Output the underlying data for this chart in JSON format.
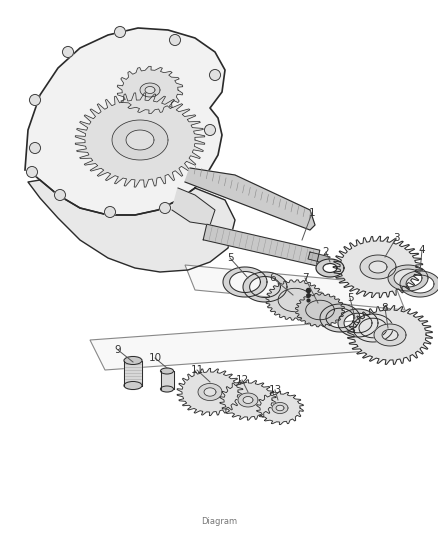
{
  "title": "Diagram",
  "background_color": "#ffffff",
  "line_color": "#2a2a2a",
  "label_color": "#333333",
  "fig_width": 4.38,
  "fig_height": 5.33,
  "dpi": 100
}
